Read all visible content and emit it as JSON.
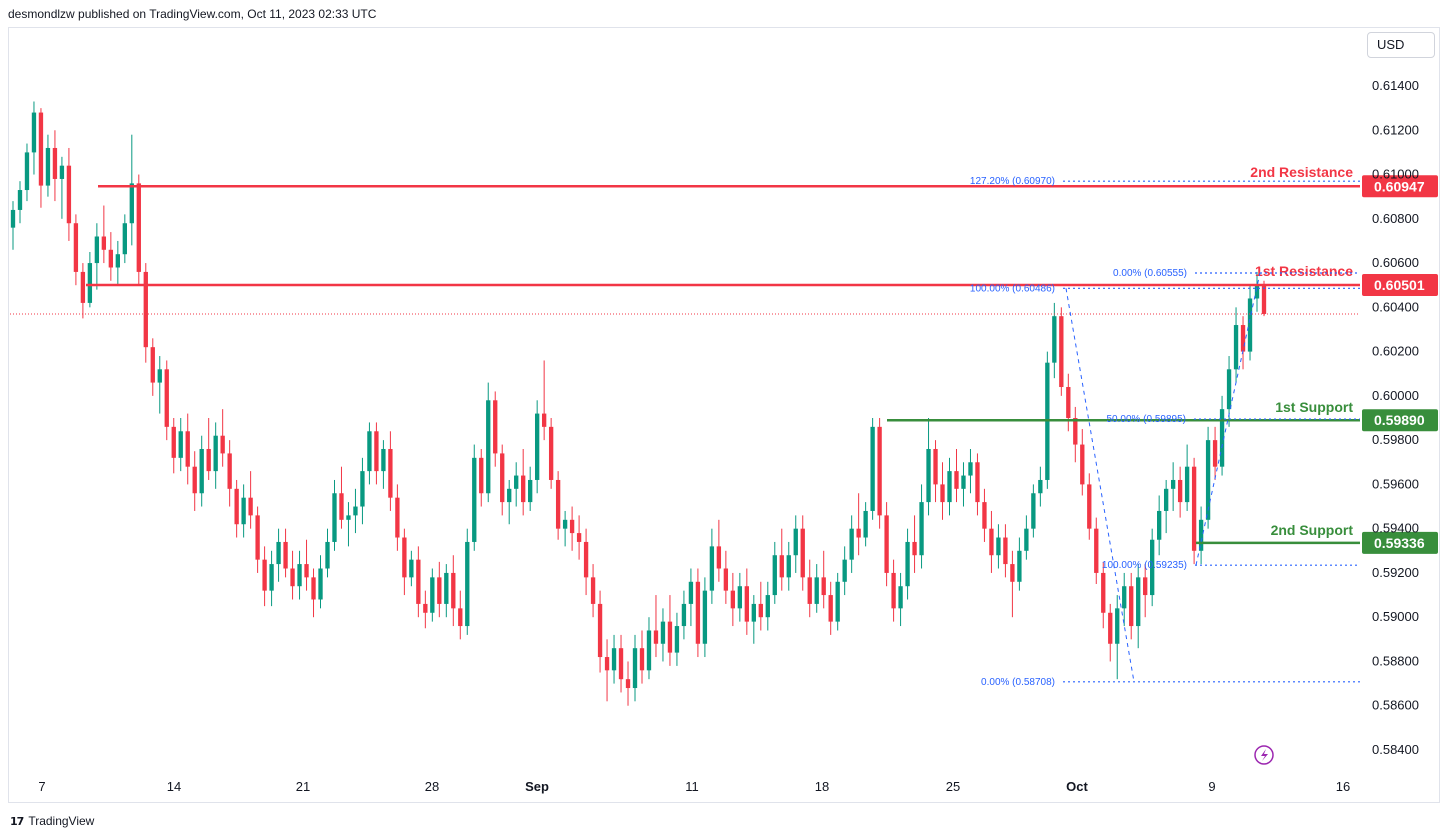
{
  "header": {
    "publisher": "desmondlzw published on TradingView.com, Oct 11, 2023 02:33 UTC"
  },
  "currency_label": "USD",
  "footer": {
    "brand": "TradingView",
    "logo_icon": "tradingview-logo-icon"
  },
  "chart_data": {
    "type": "candlestick",
    "y_ticks": [
      "0.61400",
      "0.61200",
      "0.61000",
      "0.60800",
      "0.60600",
      "0.60400",
      "0.60200",
      "0.60000",
      "0.59800",
      "0.59600",
      "0.59400",
      "0.59200",
      "0.59000",
      "0.58800",
      "0.58600",
      "0.58400"
    ],
    "x_ticks": [
      {
        "label": "7",
        "bold": false
      },
      {
        "label": "14",
        "bold": false
      },
      {
        "label": "21",
        "bold": false
      },
      {
        "label": "28",
        "bold": false
      },
      {
        "label": "Sep",
        "bold": true
      },
      {
        "label": "11",
        "bold": false
      },
      {
        "label": "18",
        "bold": false
      },
      {
        "label": "25",
        "bold": false
      },
      {
        "label": "Oct",
        "bold": true
      },
      {
        "label": "9",
        "bold": false
      },
      {
        "label": "16",
        "bold": false
      }
    ],
    "y_range": [
      0.5832,
      0.6163
    ],
    "current_price": 0.6037,
    "levels": [
      {
        "name": "2nd Resistance",
        "price": 0.60947,
        "price_label": "0.60947",
        "color": "#f23645"
      },
      {
        "name": "1st Resistance",
        "price": 0.60501,
        "price_label": "0.60501",
        "color": "#f23645"
      },
      {
        "name": "1st Support",
        "price": 0.5989,
        "price_label": "0.59890",
        "color": "#388e3c"
      },
      {
        "name": "2nd Support",
        "price": 0.59336,
        "price_label": "0.59336",
        "color": "#388e3c"
      }
    ],
    "fib_labels": [
      {
        "text": "127.20% (0.60970)",
        "price": 0.6097
      },
      {
        "text": "0.00% (0.60555)",
        "price": 0.60555
      },
      {
        "text": "100.00% (0.60486)",
        "price": 0.60486
      },
      {
        "text": "50.00% (0.59895)",
        "price": 0.59895
      },
      {
        "text": "100.00% (0.59235)",
        "price": 0.59235
      },
      {
        "text": "0.00% (0.58708)",
        "price": 0.58708
      }
    ],
    "up_color": "#089981",
    "down_color": "#f23645",
    "candles": [
      [
        0.6076,
        0.6088,
        0.6066,
        0.6084
      ],
      [
        0.6084,
        0.6097,
        0.6078,
        0.6093
      ],
      [
        0.6093,
        0.6114,
        0.6088,
        0.611
      ],
      [
        0.611,
        0.6133,
        0.61,
        0.6128
      ],
      [
        0.6128,
        0.613,
        0.6085,
        0.6095
      ],
      [
        0.6095,
        0.6118,
        0.609,
        0.6112
      ],
      [
        0.6112,
        0.612,
        0.6088,
        0.6098
      ],
      [
        0.6098,
        0.6108,
        0.608,
        0.6104
      ],
      [
        0.6104,
        0.6112,
        0.607,
        0.6078
      ],
      [
        0.6078,
        0.6082,
        0.605,
        0.6056
      ],
      [
        0.6056,
        0.606,
        0.6035,
        0.6042
      ],
      [
        0.6042,
        0.6065,
        0.604,
        0.606
      ],
      [
        0.606,
        0.6078,
        0.6048,
        0.6072
      ],
      [
        0.6072,
        0.6086,
        0.606,
        0.6066
      ],
      [
        0.6066,
        0.6074,
        0.6052,
        0.6058
      ],
      [
        0.6058,
        0.607,
        0.605,
        0.6064
      ],
      [
        0.6064,
        0.6082,
        0.606,
        0.6078
      ],
      [
        0.6078,
        0.6118,
        0.6068,
        0.6096
      ],
      [
        0.6096,
        0.61,
        0.605,
        0.6056
      ],
      [
        0.6056,
        0.606,
        0.6015,
        0.6022
      ],
      [
        0.6022,
        0.6026,
        0.6,
        0.6006
      ],
      [
        0.6006,
        0.6018,
        0.5992,
        0.6012
      ],
      [
        0.6012,
        0.6016,
        0.598,
        0.5986
      ],
      [
        0.5986,
        0.599,
        0.5965,
        0.5972
      ],
      [
        0.5972,
        0.599,
        0.5966,
        0.5984
      ],
      [
        0.5984,
        0.5992,
        0.596,
        0.5968
      ],
      [
        0.5968,
        0.5975,
        0.5948,
        0.5956
      ],
      [
        0.5956,
        0.5982,
        0.595,
        0.5976
      ],
      [
        0.5976,
        0.599,
        0.5962,
        0.5966
      ],
      [
        0.5966,
        0.5988,
        0.5958,
        0.5982
      ],
      [
        0.5982,
        0.5994,
        0.5968,
        0.5974
      ],
      [
        0.5974,
        0.598,
        0.595,
        0.5958
      ],
      [
        0.5958,
        0.5962,
        0.5936,
        0.5942
      ],
      [
        0.5942,
        0.596,
        0.5936,
        0.5954
      ],
      [
        0.5954,
        0.5966,
        0.594,
        0.5946
      ],
      [
        0.5946,
        0.595,
        0.592,
        0.5926
      ],
      [
        0.5926,
        0.5932,
        0.5905,
        0.5912
      ],
      [
        0.5912,
        0.593,
        0.5905,
        0.5924
      ],
      [
        0.5924,
        0.594,
        0.5916,
        0.5934
      ],
      [
        0.5934,
        0.594,
        0.5918,
        0.5922
      ],
      [
        0.5922,
        0.593,
        0.5908,
        0.5914
      ],
      [
        0.5914,
        0.593,
        0.5908,
        0.5924
      ],
      [
        0.5924,
        0.5935,
        0.5912,
        0.5918
      ],
      [
        0.5918,
        0.5922,
        0.59,
        0.5908
      ],
      [
        0.5908,
        0.5928,
        0.5904,
        0.5922
      ],
      [
        0.5922,
        0.594,
        0.5918,
        0.5934
      ],
      [
        0.5934,
        0.5962,
        0.593,
        0.5956
      ],
      [
        0.5956,
        0.5968,
        0.594,
        0.5944
      ],
      [
        0.5944,
        0.5952,
        0.5932,
        0.5946
      ],
      [
        0.5946,
        0.5958,
        0.5938,
        0.595
      ],
      [
        0.595,
        0.5972,
        0.5942,
        0.5966
      ],
      [
        0.5966,
        0.5988,
        0.596,
        0.5984
      ],
      [
        0.5984,
        0.5988,
        0.596,
        0.5966
      ],
      [
        0.5966,
        0.598,
        0.5958,
        0.5976
      ],
      [
        0.5976,
        0.5984,
        0.5948,
        0.5954
      ],
      [
        0.5954,
        0.596,
        0.593,
        0.5936
      ],
      [
        0.5936,
        0.594,
        0.591,
        0.5918
      ],
      [
        0.5918,
        0.593,
        0.5914,
        0.5926
      ],
      [
        0.5926,
        0.5932,
        0.59,
        0.5906
      ],
      [
        0.5906,
        0.5912,
        0.5895,
        0.5902
      ],
      [
        0.5902,
        0.5922,
        0.5898,
        0.5918
      ],
      [
        0.5918,
        0.5925,
        0.59,
        0.5906
      ],
      [
        0.5906,
        0.5924,
        0.59,
        0.592
      ],
      [
        0.592,
        0.5928,
        0.5896,
        0.5904
      ],
      [
        0.5904,
        0.5912,
        0.589,
        0.5896
      ],
      [
        0.5896,
        0.594,
        0.5892,
        0.5934
      ],
      [
        0.5934,
        0.5978,
        0.593,
        0.5972
      ],
      [
        0.5972,
        0.5976,
        0.595,
        0.5956
      ],
      [
        0.5956,
        0.6006,
        0.5952,
        0.5998
      ],
      [
        0.5998,
        0.6002,
        0.5968,
        0.5974
      ],
      [
        0.5974,
        0.5978,
        0.5946,
        0.5952
      ],
      [
        0.5952,
        0.5962,
        0.5942,
        0.5958
      ],
      [
        0.5958,
        0.597,
        0.595,
        0.5964
      ],
      [
        0.5964,
        0.5976,
        0.5946,
        0.5952
      ],
      [
        0.5952,
        0.5968,
        0.5948,
        0.5962
      ],
      [
        0.5962,
        0.5998,
        0.5956,
        0.5992
      ],
      [
        0.5992,
        0.6016,
        0.598,
        0.5986
      ],
      [
        0.5986,
        0.599,
        0.5958,
        0.5962
      ],
      [
        0.5962,
        0.5966,
        0.5935,
        0.594
      ],
      [
        0.594,
        0.5948,
        0.5932,
        0.5944
      ],
      [
        0.5944,
        0.595,
        0.593,
        0.5938
      ],
      [
        0.5938,
        0.5946,
        0.5926,
        0.5934
      ],
      [
        0.5934,
        0.594,
        0.591,
        0.5918
      ],
      [
        0.5918,
        0.5924,
        0.59,
        0.5906
      ],
      [
        0.5906,
        0.5912,
        0.5875,
        0.5882
      ],
      [
        0.5882,
        0.589,
        0.5862,
        0.5876
      ],
      [
        0.5876,
        0.5892,
        0.587,
        0.5886
      ],
      [
        0.5886,
        0.5892,
        0.5866,
        0.5872
      ],
      [
        0.5872,
        0.588,
        0.586,
        0.5868
      ],
      [
        0.5868,
        0.5892,
        0.5862,
        0.5886
      ],
      [
        0.5886,
        0.5894,
        0.587,
        0.5876
      ],
      [
        0.5876,
        0.59,
        0.5872,
        0.5894
      ],
      [
        0.5894,
        0.591,
        0.5882,
        0.5888
      ],
      [
        0.5888,
        0.5904,
        0.588,
        0.5898
      ],
      [
        0.5898,
        0.591,
        0.5878,
        0.5884
      ],
      [
        0.5884,
        0.5902,
        0.5878,
        0.5896
      ],
      [
        0.5896,
        0.5912,
        0.589,
        0.5906
      ],
      [
        0.5906,
        0.5922,
        0.5896,
        0.5916
      ],
      [
        0.5916,
        0.5922,
        0.5882,
        0.5888
      ],
      [
        0.5888,
        0.5918,
        0.5882,
        0.5912
      ],
      [
        0.5912,
        0.594,
        0.5906,
        0.5932
      ],
      [
        0.5932,
        0.5944,
        0.5916,
        0.5922
      ],
      [
        0.5922,
        0.593,
        0.5906,
        0.5912
      ],
      [
        0.5912,
        0.592,
        0.5896,
        0.5904
      ],
      [
        0.5904,
        0.592,
        0.5898,
        0.5914
      ],
      [
        0.5914,
        0.5922,
        0.5892,
        0.5898
      ],
      [
        0.5898,
        0.591,
        0.5888,
        0.5906
      ],
      [
        0.5906,
        0.5916,
        0.5894,
        0.59
      ],
      [
        0.59,
        0.5916,
        0.5894,
        0.591
      ],
      [
        0.591,
        0.5934,
        0.5906,
        0.5928
      ],
      [
        0.5928,
        0.594,
        0.5912,
        0.5918
      ],
      [
        0.5918,
        0.5934,
        0.5912,
        0.5928
      ],
      [
        0.5928,
        0.5946,
        0.592,
        0.594
      ],
      [
        0.594,
        0.5946,
        0.5912,
        0.5918
      ],
      [
        0.5918,
        0.5926,
        0.59,
        0.5906
      ],
      [
        0.5906,
        0.5924,
        0.5902,
        0.5918
      ],
      [
        0.5918,
        0.593,
        0.5904,
        0.591
      ],
      [
        0.591,
        0.5916,
        0.5892,
        0.5898
      ],
      [
        0.5898,
        0.592,
        0.5894,
        0.5916
      ],
      [
        0.5916,
        0.5932,
        0.591,
        0.5926
      ],
      [
        0.5926,
        0.5946,
        0.592,
        0.594
      ],
      [
        0.594,
        0.5956,
        0.5928,
        0.5936
      ],
      [
        0.5936,
        0.5952,
        0.5932,
        0.5948
      ],
      [
        0.5948,
        0.599,
        0.5944,
        0.5986
      ],
      [
        0.5986,
        0.599,
        0.594,
        0.5946
      ],
      [
        0.5946,
        0.5952,
        0.5914,
        0.592
      ],
      [
        0.592,
        0.5926,
        0.5898,
        0.5904
      ],
      [
        0.5904,
        0.592,
        0.5896,
        0.5914
      ],
      [
        0.5914,
        0.594,
        0.5908,
        0.5934
      ],
      [
        0.5934,
        0.5946,
        0.592,
        0.5928
      ],
      [
        0.5928,
        0.596,
        0.5922,
        0.5952
      ],
      [
        0.5952,
        0.599,
        0.5946,
        0.5976
      ],
      [
        0.5976,
        0.598,
        0.5952,
        0.596
      ],
      [
        0.596,
        0.597,
        0.5944,
        0.5952
      ],
      [
        0.5952,
        0.5972,
        0.5946,
        0.5966
      ],
      [
        0.5966,
        0.5976,
        0.5952,
        0.5958
      ],
      [
        0.5958,
        0.597,
        0.595,
        0.5964
      ],
      [
        0.5964,
        0.5976,
        0.5956,
        0.597
      ],
      [
        0.597,
        0.5974,
        0.5946,
        0.5952
      ],
      [
        0.5952,
        0.5958,
        0.5934,
        0.594
      ],
      [
        0.594,
        0.5948,
        0.592,
        0.5928
      ],
      [
        0.5928,
        0.5942,
        0.5922,
        0.5936
      ],
      [
        0.5936,
        0.5942,
        0.5918,
        0.5924
      ],
      [
        0.5924,
        0.593,
        0.59,
        0.5916
      ],
      [
        0.5916,
        0.5936,
        0.5912,
        0.593
      ],
      [
        0.593,
        0.5946,
        0.5926,
        0.594
      ],
      [
        0.594,
        0.596,
        0.5936,
        0.5956
      ],
      [
        0.5956,
        0.5968,
        0.595,
        0.5962
      ],
      [
        0.5962,
        0.602,
        0.5958,
        0.6015
      ],
      [
        0.6015,
        0.6042,
        0.6008,
        0.6036
      ],
      [
        0.6036,
        0.604,
        0.6,
        0.6004
      ],
      [
        0.6004,
        0.601,
        0.5984,
        0.599
      ],
      [
        0.599,
        0.5995,
        0.597,
        0.5978
      ],
      [
        0.5978,
        0.5985,
        0.5955,
        0.596
      ],
      [
        0.596,
        0.5965,
        0.5935,
        0.594
      ],
      [
        0.594,
        0.5945,
        0.5915,
        0.592
      ],
      [
        0.592,
        0.5925,
        0.5895,
        0.5902
      ],
      [
        0.5902,
        0.5906,
        0.588,
        0.5888
      ],
      [
        0.5888,
        0.591,
        0.5872,
        0.5904
      ],
      [
        0.5904,
        0.592,
        0.5896,
        0.5914
      ],
      [
        0.5914,
        0.592,
        0.589,
        0.5896
      ],
      [
        0.5896,
        0.5924,
        0.5886,
        0.5918
      ],
      [
        0.5918,
        0.5924,
        0.59,
        0.591
      ],
      [
        0.591,
        0.594,
        0.5905,
        0.5935
      ],
      [
        0.5935,
        0.5955,
        0.5928,
        0.5948
      ],
      [
        0.5948,
        0.5962,
        0.5938,
        0.5958
      ],
      [
        0.5958,
        0.597,
        0.5948,
        0.5962
      ],
      [
        0.5962,
        0.5968,
        0.5945,
        0.5952
      ],
      [
        0.5952,
        0.5978,
        0.5948,
        0.5968
      ],
      [
        0.5968,
        0.5972,
        0.5924,
        0.593
      ],
      [
        0.593,
        0.595,
        0.5924,
        0.5944
      ],
      [
        0.5944,
        0.5986,
        0.594,
        0.598
      ],
      [
        0.598,
        0.5986,
        0.5962,
        0.5968
      ],
      [
        0.5968,
        0.6,
        0.5964,
        0.5994
      ],
      [
        0.5994,
        0.6018,
        0.5986,
        0.6012
      ],
      [
        0.6012,
        0.604,
        0.6006,
        0.6032
      ],
      [
        0.6032,
        0.6036,
        0.6012,
        0.602
      ],
      [
        0.602,
        0.605,
        0.6016,
        0.6044
      ],
      [
        0.6044,
        0.6056,
        0.6038,
        0.605
      ],
      [
        0.605,
        0.6052,
        0.6036,
        0.6037
      ]
    ]
  }
}
